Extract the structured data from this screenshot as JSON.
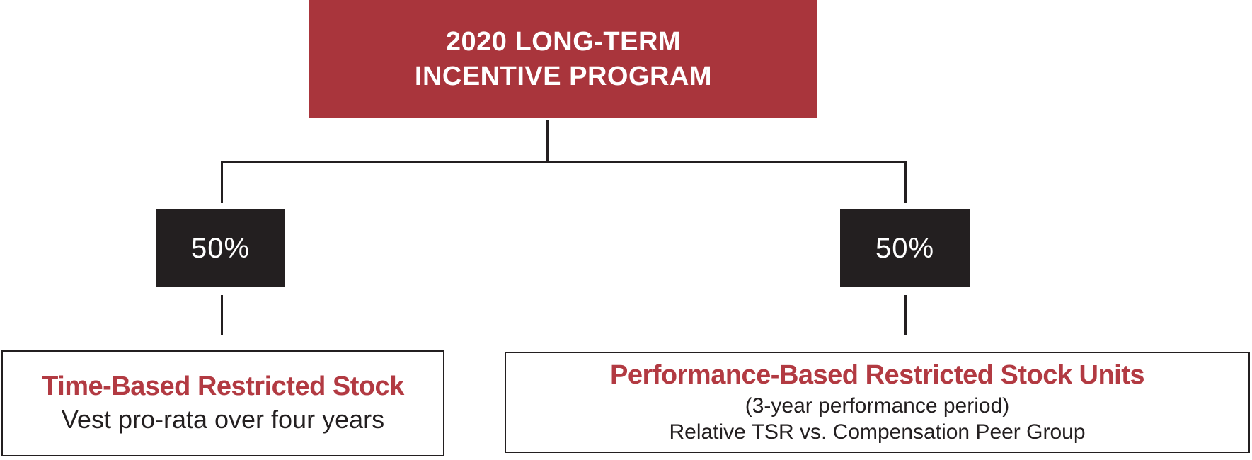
{
  "diagram": {
    "root": {
      "line1": "2020 LONG-TERM",
      "line2": "INCENTIVE PROGRAM"
    },
    "left_branch": {
      "percent": "50%",
      "title": "Time-Based Restricted Stock",
      "subtitle": "Vest pro-rata over four years"
    },
    "right_branch": {
      "percent": "50%",
      "title": "Performance-Based Restricted Stock Units",
      "subtitle1": "(3-year performance period)",
      "subtitle2": "Relative TSR vs. Compensation Peer Group"
    },
    "colors": {
      "root_box_fill": "#A9353C",
      "percent_box_fill": "#231F20",
      "accent_red_text": "#B23A42",
      "body_text": "#231F20",
      "connector": "#231F20",
      "background": "#FFFFFF"
    }
  }
}
